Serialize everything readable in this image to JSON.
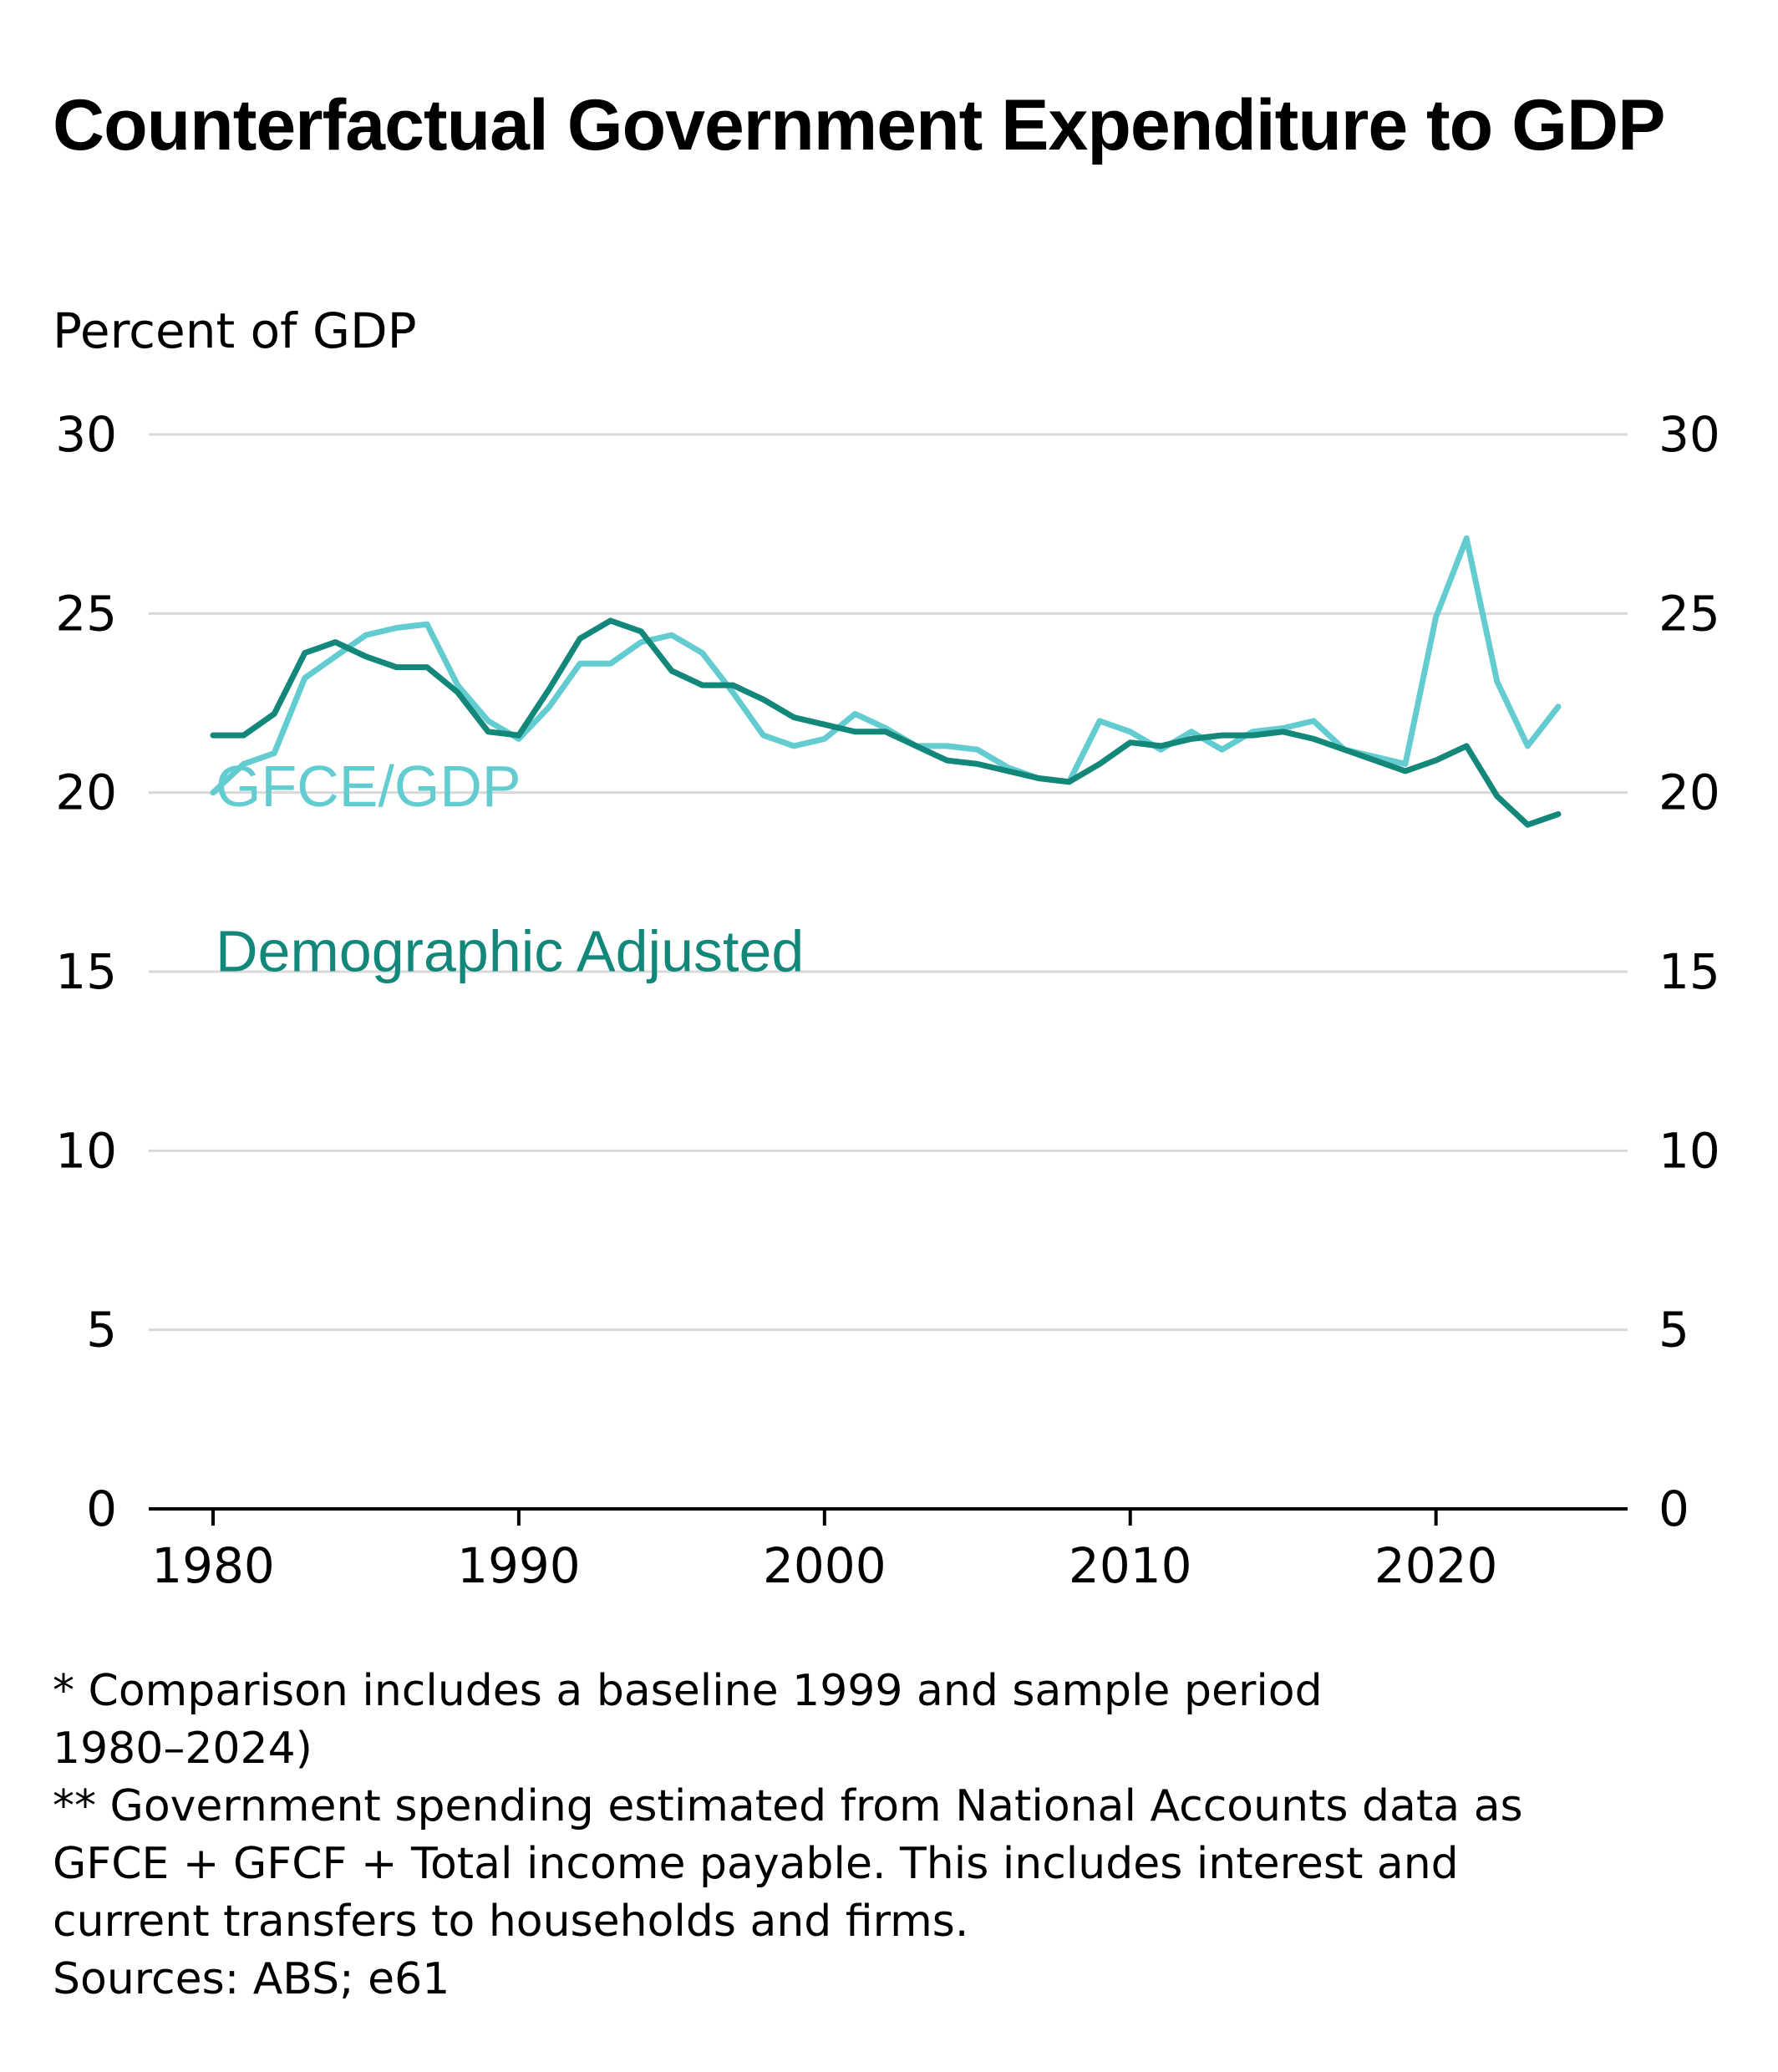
{
  "title": "Counterfactual Government Expenditure to GDP",
  "unit_label": "Percent of GDP",
  "footnotes": [
    "* Comparison includes a baseline 1999 and sample period\n1980–2024)",
    "** Government spending estimated from National Accounts data as\nGFCE + GFCF + Total income payable. This includes interest and\ncurrent transfers to households and firms.",
    "Sources: ABS; e61"
  ],
  "chart_data": {
    "type": "line",
    "title": "Counterfactual Government Expenditure to GDP",
    "ylabel": "Percent of GDP",
    "xlabel": "",
    "xlim": [
      1978,
      2026
    ],
    "ylim": [
      0,
      30
    ],
    "x_ticks": [
      1980,
      1990,
      2000,
      2010,
      2020
    ],
    "y_ticks": [
      0,
      5,
      10,
      15,
      20,
      25,
      30
    ],
    "grid": true,
    "legend": "inline-labels-left",
    "x": [
      1980,
      1981,
      1982,
      1983,
      1984,
      1985,
      1986,
      1987,
      1988,
      1989,
      1990,
      1991,
      1992,
      1993,
      1994,
      1995,
      1996,
      1997,
      1998,
      1999,
      2000,
      2001,
      2002,
      2003,
      2004,
      2005,
      2006,
      2007,
      2008,
      2009,
      2010,
      2011,
      2012,
      2013,
      2014,
      2015,
      2016,
      2017,
      2018,
      2019,
      2020,
      2021,
      2022,
      2023,
      2024
    ],
    "series": [
      {
        "name": "GFCE/GDP",
        "color": "#62CCD0",
        "values": [
          20.0,
          20.8,
          21.1,
          23.2,
          23.8,
          24.4,
          24.6,
          24.7,
          23.0,
          22.0,
          21.5,
          22.4,
          23.6,
          23.6,
          24.2,
          24.4,
          23.9,
          22.8,
          21.6,
          21.3,
          21.5,
          22.2,
          21.8,
          21.3,
          21.3,
          21.2,
          20.7,
          20.4,
          20.3,
          22.0,
          21.7,
          21.2,
          21.7,
          21.2,
          21.7,
          21.8,
          22.0,
          21.2,
          21.0,
          20.8,
          24.9,
          27.1,
          23.1,
          21.3,
          22.4
        ]
      },
      {
        "name": "Demographic Adjusted",
        "color": "#12877A",
        "values": [
          21.6,
          21.6,
          22.2,
          23.9,
          24.2,
          23.8,
          23.5,
          23.5,
          22.8,
          21.7,
          21.6,
          22.9,
          24.3,
          24.8,
          24.5,
          23.4,
          23.0,
          23.0,
          22.6,
          22.1,
          21.9,
          21.7,
          21.7,
          21.3,
          20.9,
          20.8,
          20.6,
          20.4,
          20.3,
          20.8,
          21.4,
          21.3,
          21.5,
          21.6,
          21.6,
          21.7,
          21.5,
          21.2,
          20.9,
          20.6,
          20.9,
          21.3,
          19.9,
          19.1,
          19.4
        ]
      }
    ]
  }
}
